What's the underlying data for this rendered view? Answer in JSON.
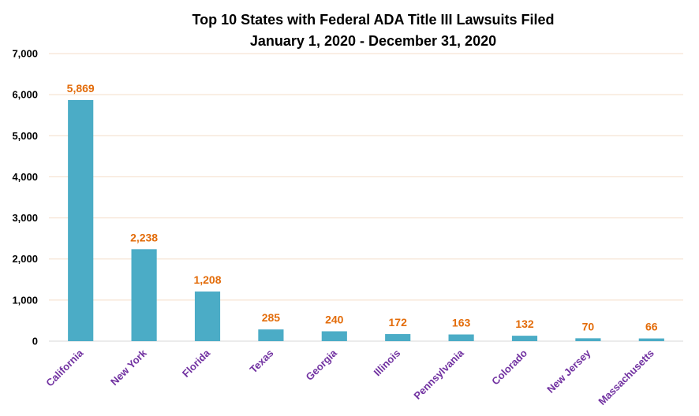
{
  "chart_data": {
    "type": "bar",
    "title": "Top 10 States with Federal ADA Title III Lawsuits Filed",
    "subtitle": "January 1, 2020 - December 31, 2020",
    "categories": [
      "California",
      "New York",
      "Florida",
      "Texas",
      "Georgia",
      "Illinois",
      "Pennsylvania",
      "Colorado",
      "New Jersey",
      "Massachusetts"
    ],
    "values": [
      5869,
      2238,
      1208,
      285,
      240,
      172,
      163,
      132,
      70,
      66
    ],
    "data_labels": [
      "5,869",
      "2,238",
      "1,208",
      "285",
      "240",
      "172",
      "163",
      "132",
      "70",
      "66"
    ],
    "ylim": [
      0,
      7000
    ],
    "yticks": [
      0,
      1000,
      2000,
      3000,
      4000,
      5000,
      6000,
      7000
    ],
    "ytick_labels": [
      "0",
      "1,000",
      "2,000",
      "3,000",
      "4,000",
      "5,000",
      "6,000",
      "7,000"
    ],
    "xlabel": "",
    "ylabel": "",
    "grid": true,
    "legend": "none",
    "colors": {
      "bar": "#4BACC6",
      "data_label": "#E36C0A",
      "category_label": "#7030A0",
      "gridline": "#F4DDC8",
      "axis": "#D9D9D9"
    }
  }
}
